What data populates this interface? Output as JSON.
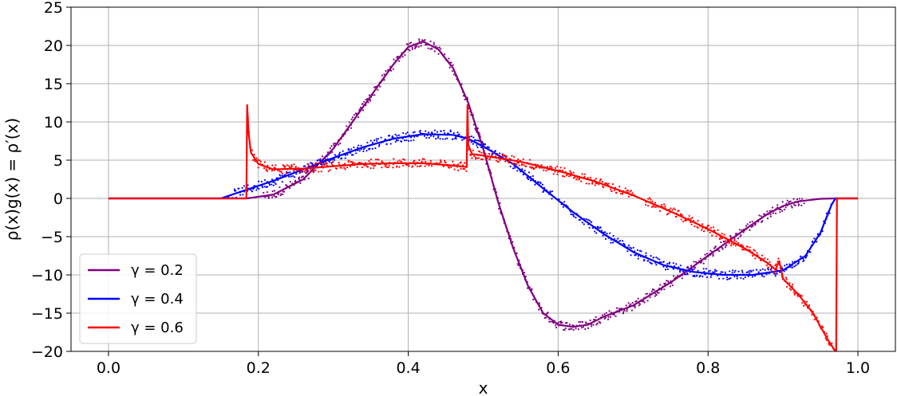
{
  "chart_data": {
    "type": "line",
    "xlabel": "x",
    "ylabel": "ρ(x)g(x) = ρ′(x)",
    "xlim": [
      -0.05,
      1.05
    ],
    "ylim": [
      -20,
      25
    ],
    "x_ticks": [
      "0.0",
      "0.2",
      "0.4",
      "0.6",
      "0.8",
      "1.0"
    ],
    "y_ticks": [
      "−20",
      "−15",
      "−10",
      "−5",
      "0",
      "5",
      "10",
      "15",
      "20",
      "25"
    ],
    "grid": true,
    "legend_position": "lower-left",
    "series": [
      {
        "name": "γ = 0.2",
        "color": "#800080",
        "x": [
          0.0,
          0.185,
          0.22,
          0.26,
          0.3,
          0.34,
          0.38,
          0.4,
          0.42,
          0.44,
          0.46,
          0.48,
          0.5,
          0.52,
          0.54,
          0.56,
          0.58,
          0.6,
          0.62,
          0.64,
          0.66,
          0.7,
          0.75,
          0.8,
          0.85,
          0.88,
          0.9,
          0.92,
          0.95,
          0.97,
          1.0
        ],
        "y": [
          0,
          0,
          0.5,
          2.5,
          6.5,
          12.0,
          17.5,
          19.8,
          20.5,
          19.5,
          17.0,
          12.5,
          6.5,
          -0.5,
          -6.5,
          -11.5,
          -15.0,
          -16.5,
          -16.8,
          -16.5,
          -15.5,
          -14.0,
          -11.0,
          -7.5,
          -4.0,
          -2.0,
          -1.0,
          -0.4,
          -0.05,
          0,
          0
        ]
      },
      {
        "name": "γ = 0.4",
        "color": "#0000ff",
        "x": [
          0.0,
          0.15,
          0.18,
          0.22,
          0.26,
          0.3,
          0.34,
          0.38,
          0.42,
          0.46,
          0.48,
          0.5,
          0.54,
          0.58,
          0.62,
          0.66,
          0.7,
          0.74,
          0.78,
          0.82,
          0.86,
          0.9,
          0.93,
          0.95,
          0.96,
          0.965,
          0.97,
          1.0
        ],
        "y": [
          0,
          0,
          1.0,
          2.3,
          3.8,
          5.3,
          6.7,
          7.8,
          8.4,
          8.3,
          7.8,
          6.8,
          4.5,
          1.3,
          -1.8,
          -4.6,
          -7.0,
          -8.7,
          -9.6,
          -10.0,
          -10.0,
          -9.4,
          -7.5,
          -4.5,
          -2.0,
          -0.8,
          0,
          0
        ]
      },
      {
        "name": "γ = 0.6",
        "color": "#ff0000",
        "x": [
          0.0,
          0.184,
          0.185,
          0.187,
          0.19,
          0.2,
          0.22,
          0.26,
          0.3,
          0.34,
          0.38,
          0.42,
          0.46,
          0.478,
          0.479,
          0.48,
          0.485,
          0.5,
          0.55,
          0.6,
          0.65,
          0.7,
          0.75,
          0.8,
          0.85,
          0.88,
          0.89,
          0.895,
          0.9,
          0.92,
          0.94,
          0.96,
          0.97,
          0.971,
          0.972,
          1.0
        ],
        "y": [
          0,
          0,
          12.2,
          8.5,
          6.0,
          4.5,
          3.8,
          3.9,
          4.2,
          4.5,
          4.6,
          4.6,
          4.3,
          4.1,
          12.2,
          7.0,
          5.8,
          5.6,
          4.8,
          3.6,
          2.2,
          0.4,
          -1.7,
          -4.0,
          -6.6,
          -8.5,
          -9.3,
          -8.2,
          -10.5,
          -12.5,
          -15.0,
          -18.5,
          -20.0,
          -20.0,
          0,
          0
        ]
      }
    ]
  }
}
